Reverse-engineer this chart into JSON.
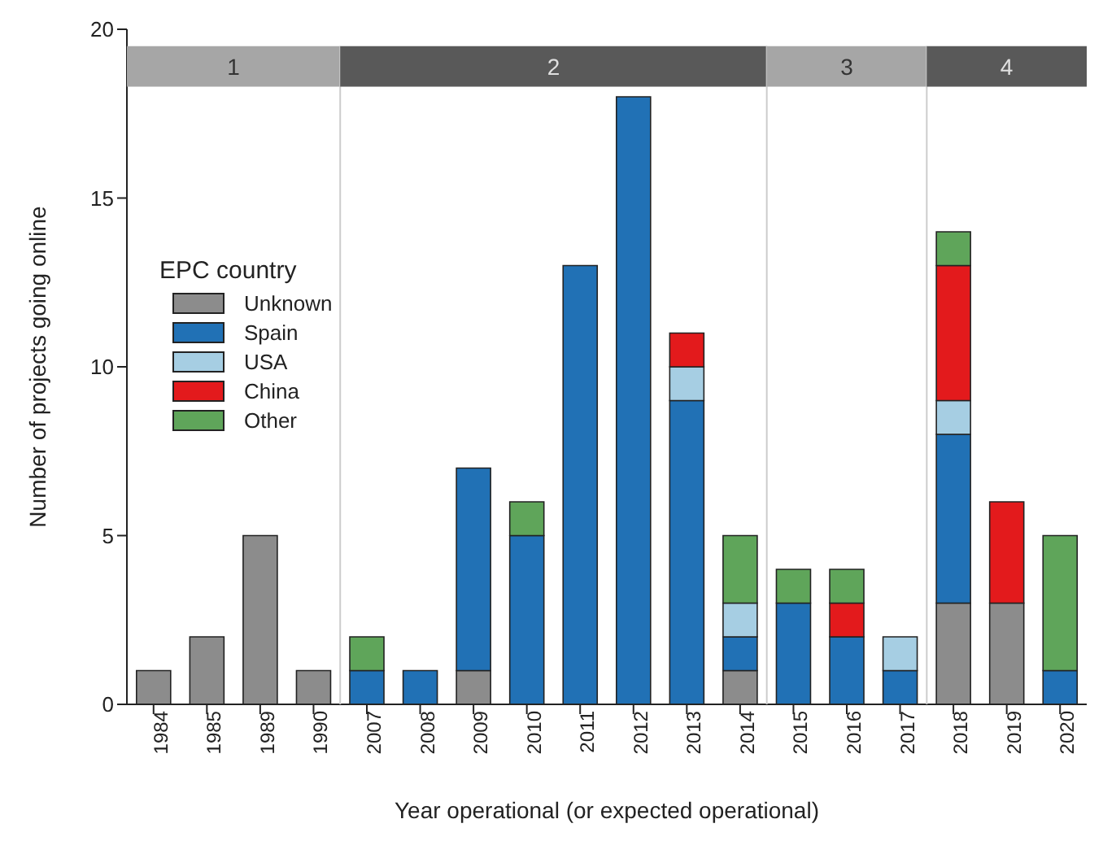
{
  "chart_data": {
    "type": "bar",
    "stacked": true,
    "xlabel": "Year operational (or expected operational)",
    "ylabel": "Number of projects going online",
    "legend_title": "EPC country",
    "legend": "left",
    "grid": false,
    "categories": [
      "1984",
      "1985",
      "1989",
      "1990",
      "2007",
      "2008",
      "2009",
      "2010",
      "2011",
      "2012",
      "2013",
      "2014",
      "2015",
      "2016",
      "2017",
      "2018",
      "2019",
      "2020"
    ],
    "ylim": [
      0,
      20
    ],
    "yticks": [
      0,
      5,
      10,
      15,
      20
    ],
    "series": [
      {
        "name": "Unknown",
        "color": "#8c8c8c",
        "values": [
          1,
          2,
          5,
          1,
          null,
          null,
          1,
          null,
          null,
          null,
          null,
          1,
          null,
          null,
          null,
          3,
          3,
          null
        ]
      },
      {
        "name": "Spain",
        "color": "#2171b5",
        "values": [
          null,
          null,
          null,
          null,
          1,
          1,
          6,
          5,
          13,
          18,
          9,
          1,
          3,
          2,
          1,
          5,
          null,
          1
        ]
      },
      {
        "name": "USA",
        "color": "#a6cee3",
        "values": [
          null,
          null,
          null,
          null,
          null,
          null,
          null,
          null,
          null,
          null,
          1,
          1,
          null,
          null,
          1,
          1,
          null,
          null
        ]
      },
      {
        "name": "China",
        "color": "#e31a1c",
        "values": [
          null,
          null,
          null,
          null,
          null,
          null,
          null,
          null,
          null,
          null,
          1,
          null,
          null,
          1,
          null,
          4,
          3,
          null
        ]
      },
      {
        "name": "Other",
        "color": "#5fa55a",
        "values": [
          null,
          null,
          null,
          null,
          1,
          null,
          null,
          1,
          null,
          null,
          null,
          2,
          1,
          1,
          null,
          1,
          null,
          4
        ]
      }
    ],
    "bands": [
      {
        "axis": "x",
        "from": "1984",
        "to": "1990",
        "label": "1",
        "color": "#a6a6a6"
      },
      {
        "axis": "x",
        "from": "2007",
        "to": "2014",
        "label": "2",
        "color": "#595959"
      },
      {
        "axis": "x",
        "from": "2015",
        "to": "2017",
        "label": "3",
        "color": "#a6a6a6"
      },
      {
        "axis": "x",
        "from": "2018",
        "to": "2020",
        "label": "4",
        "color": "#595959"
      }
    ]
  }
}
